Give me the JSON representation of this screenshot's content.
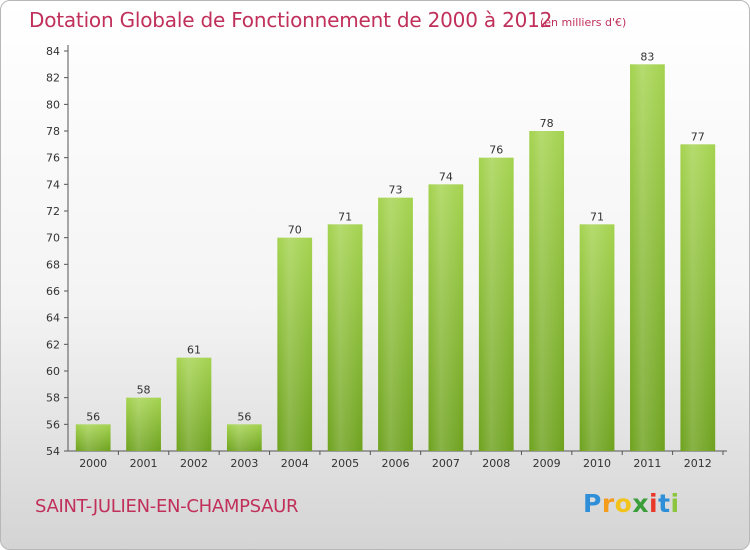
{
  "chart_data": {
    "type": "bar",
    "title": "Dotation Globale de Fonctionnement de 2000 à 2012",
    "subtitle": "(en milliers d'€)",
    "categories": [
      "2000",
      "2001",
      "2002",
      "2003",
      "2004",
      "2005",
      "2006",
      "2007",
      "2008",
      "2009",
      "2010",
      "2011",
      "2012"
    ],
    "values": [
      56,
      58,
      61,
      56,
      70,
      71,
      73,
      74,
      76,
      78,
      71,
      83,
      77
    ],
    "ylim": [
      54,
      84
    ],
    "yticks": [
      54,
      56,
      58,
      60,
      62,
      64,
      66,
      68,
      70,
      72,
      74,
      76,
      78,
      80,
      82,
      84
    ],
    "xlabel": "",
    "ylabel": "",
    "grid": false,
    "data_labels": true,
    "bar_color_top": "#a4d34f",
    "bar_color_bottom": "#6ea21e"
  },
  "commune": "SAINT-JULIEN-EN-CHAMPSAUR",
  "brand": {
    "letters": [
      "P",
      "r",
      "o",
      "x",
      "i",
      "t",
      "i"
    ],
    "colors": [
      "#2e8fd8",
      "#f39c1e",
      "#f2c31a",
      "#3a9e3a",
      "#e8392b",
      "#2e8fd8",
      "#8cc63f"
    ]
  },
  "colors": {
    "title": "#c0305a",
    "axis": "#555555"
  }
}
